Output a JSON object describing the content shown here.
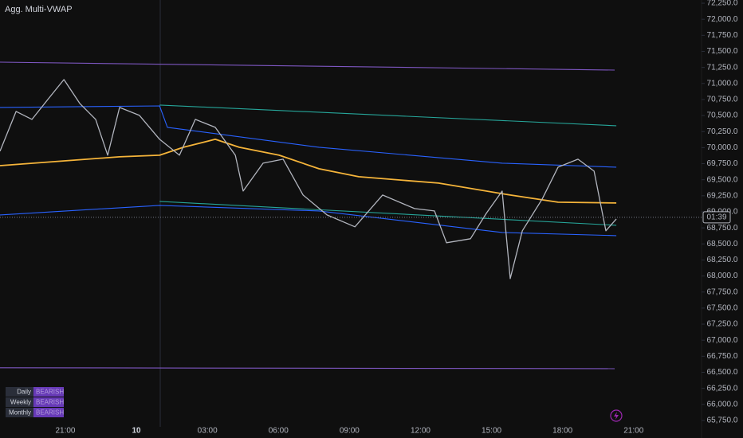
{
  "chart_data": {
    "type": "line",
    "title": "Agg. Multi-VWAP",
    "xlim": [
      -5.76,
      23.87
    ],
    "ylim": [
      65650,
      72300
    ],
    "xticks": [
      {
        "value": -3,
        "label": "21:00"
      },
      {
        "value": 0,
        "label": "10"
      },
      {
        "value": 3,
        "label": "03:00"
      },
      {
        "value": 6,
        "label": "06:00"
      },
      {
        "value": 9,
        "label": "09:00"
      },
      {
        "value": 12,
        "label": "12:00"
      },
      {
        "value": 15,
        "label": "15:00"
      },
      {
        "value": 18,
        "label": "18:00"
      },
      {
        "value": 21,
        "label": "21:00"
      }
    ],
    "yticks": [
      {
        "value": 72250,
        "label": "72,250.0"
      },
      {
        "value": 72000,
        "label": "72,000.0"
      },
      {
        "value": 71750,
        "label": "71,750.0"
      },
      {
        "value": 71500,
        "label": "71,500.0"
      },
      {
        "value": 71250,
        "label": "71,250.0"
      },
      {
        "value": 71000,
        "label": "71,000.0"
      },
      {
        "value": 70750,
        "label": "70,750.0"
      },
      {
        "value": 70500,
        "label": "70,500.0"
      },
      {
        "value": 70250,
        "label": "70,250.0"
      },
      {
        "value": 70000,
        "label": "70,000.0"
      },
      {
        "value": 69750,
        "label": "69,750.0"
      },
      {
        "value": 69500,
        "label": "69,500.0"
      },
      {
        "value": 69250,
        "label": "69,250.0"
      },
      {
        "value": 69000,
        "label": "69,000.0"
      },
      {
        "value": 68750,
        "label": "68,750.0"
      },
      {
        "value": 68500,
        "label": "68,500.0"
      },
      {
        "value": 68250,
        "label": "68,250.0"
      },
      {
        "value": 68000,
        "label": "68,000.0"
      },
      {
        "value": 67750,
        "label": "67,750.0"
      },
      {
        "value": 67500,
        "label": "67,500.0"
      },
      {
        "value": 67250,
        "label": "67,250.0"
      },
      {
        "value": 67000,
        "label": "67,000.0"
      },
      {
        "value": 66750,
        "label": "66,750.0"
      },
      {
        "value": 66500,
        "label": "66,500.0"
      },
      {
        "value": 66250,
        "label": "66,250.0"
      },
      {
        "value": 66000,
        "label": "66,000.0"
      },
      {
        "value": 65750,
        "label": "65,750.0"
      }
    ],
    "current_price": 68915,
    "countdown": "01:39",
    "series": [
      {
        "color": "#7e57c2",
        "x": [
          -5.76,
          20.2
        ],
        "values": [
          71332,
          71208
        ]
      },
      {
        "color": "#7e57c2",
        "x": [
          -5.76,
          20.2
        ],
        "values": [
          66570,
          66557
        ]
      },
      {
        "color": "#2962ff",
        "x": [
          -5.76,
          0.98,
          1.31,
          7.71,
          15.45,
          20.27
        ],
        "values": [
          70626,
          70650,
          70316,
          70006,
          69758,
          69696
        ]
      },
      {
        "color": "#2962ff",
        "x": [
          -5.76,
          0.98,
          7.71,
          15.45,
          20.27
        ],
        "values": [
          68951,
          69100,
          69014,
          68679,
          68629
        ]
      },
      {
        "color": "#26a69a",
        "x": [
          0.98,
          20.27
        ],
        "values": [
          70663,
          70341
        ]
      },
      {
        "color": "#26a69a",
        "x": [
          0.98,
          20.27
        ],
        "values": [
          69162,
          68790
        ]
      },
      {
        "color": "#f5b43a",
        "x": [
          -5.76,
          -0.71,
          0.98,
          1.99,
          3.33,
          4.34,
          6.03,
          7.71,
          9.39,
          12.76,
          15.79,
          17.81,
          20.27
        ],
        "values": [
          69720,
          69857,
          69882,
          70006,
          70130,
          70006,
          69882,
          69671,
          69547,
          69448,
          69262,
          69150,
          69138
        ]
      },
      {
        "color": "#b2b5be",
        "x": [
          -5.76,
          -5.08,
          -4.41,
          -3.74,
          -3.06,
          -2.39,
          -1.72,
          -1.21,
          -0.71,
          0.13,
          0.98,
          1.82,
          2.49,
          3.33,
          4.18,
          4.51,
          5.35,
          6.2,
          7.04,
          8.05,
          9.23,
          10.4,
          11.75,
          12.59,
          13.1,
          14.11,
          14.78,
          15.45,
          15.79,
          16.3,
          17.14,
          17.81,
          18.65,
          19.33,
          19.83,
          20.27
        ],
        "values": [
          69944,
          70564,
          70440,
          70750,
          71060,
          70688,
          70440,
          69882,
          70626,
          70502,
          70130,
          69882,
          70440,
          70316,
          69882,
          69324,
          69758,
          69820,
          69262,
          68952,
          68766,
          69262,
          69051,
          69014,
          68518,
          68580,
          68976,
          69324,
          67960,
          68704,
          69200,
          69696,
          69820,
          69634,
          68704,
          68890
        ]
      }
    ]
  },
  "status_table": {
    "rows": [
      [
        "Daily",
        "BEARISH"
      ],
      [
        "Weekly",
        "BEARISH"
      ],
      [
        "Monthly",
        "BEARISH"
      ]
    ]
  }
}
